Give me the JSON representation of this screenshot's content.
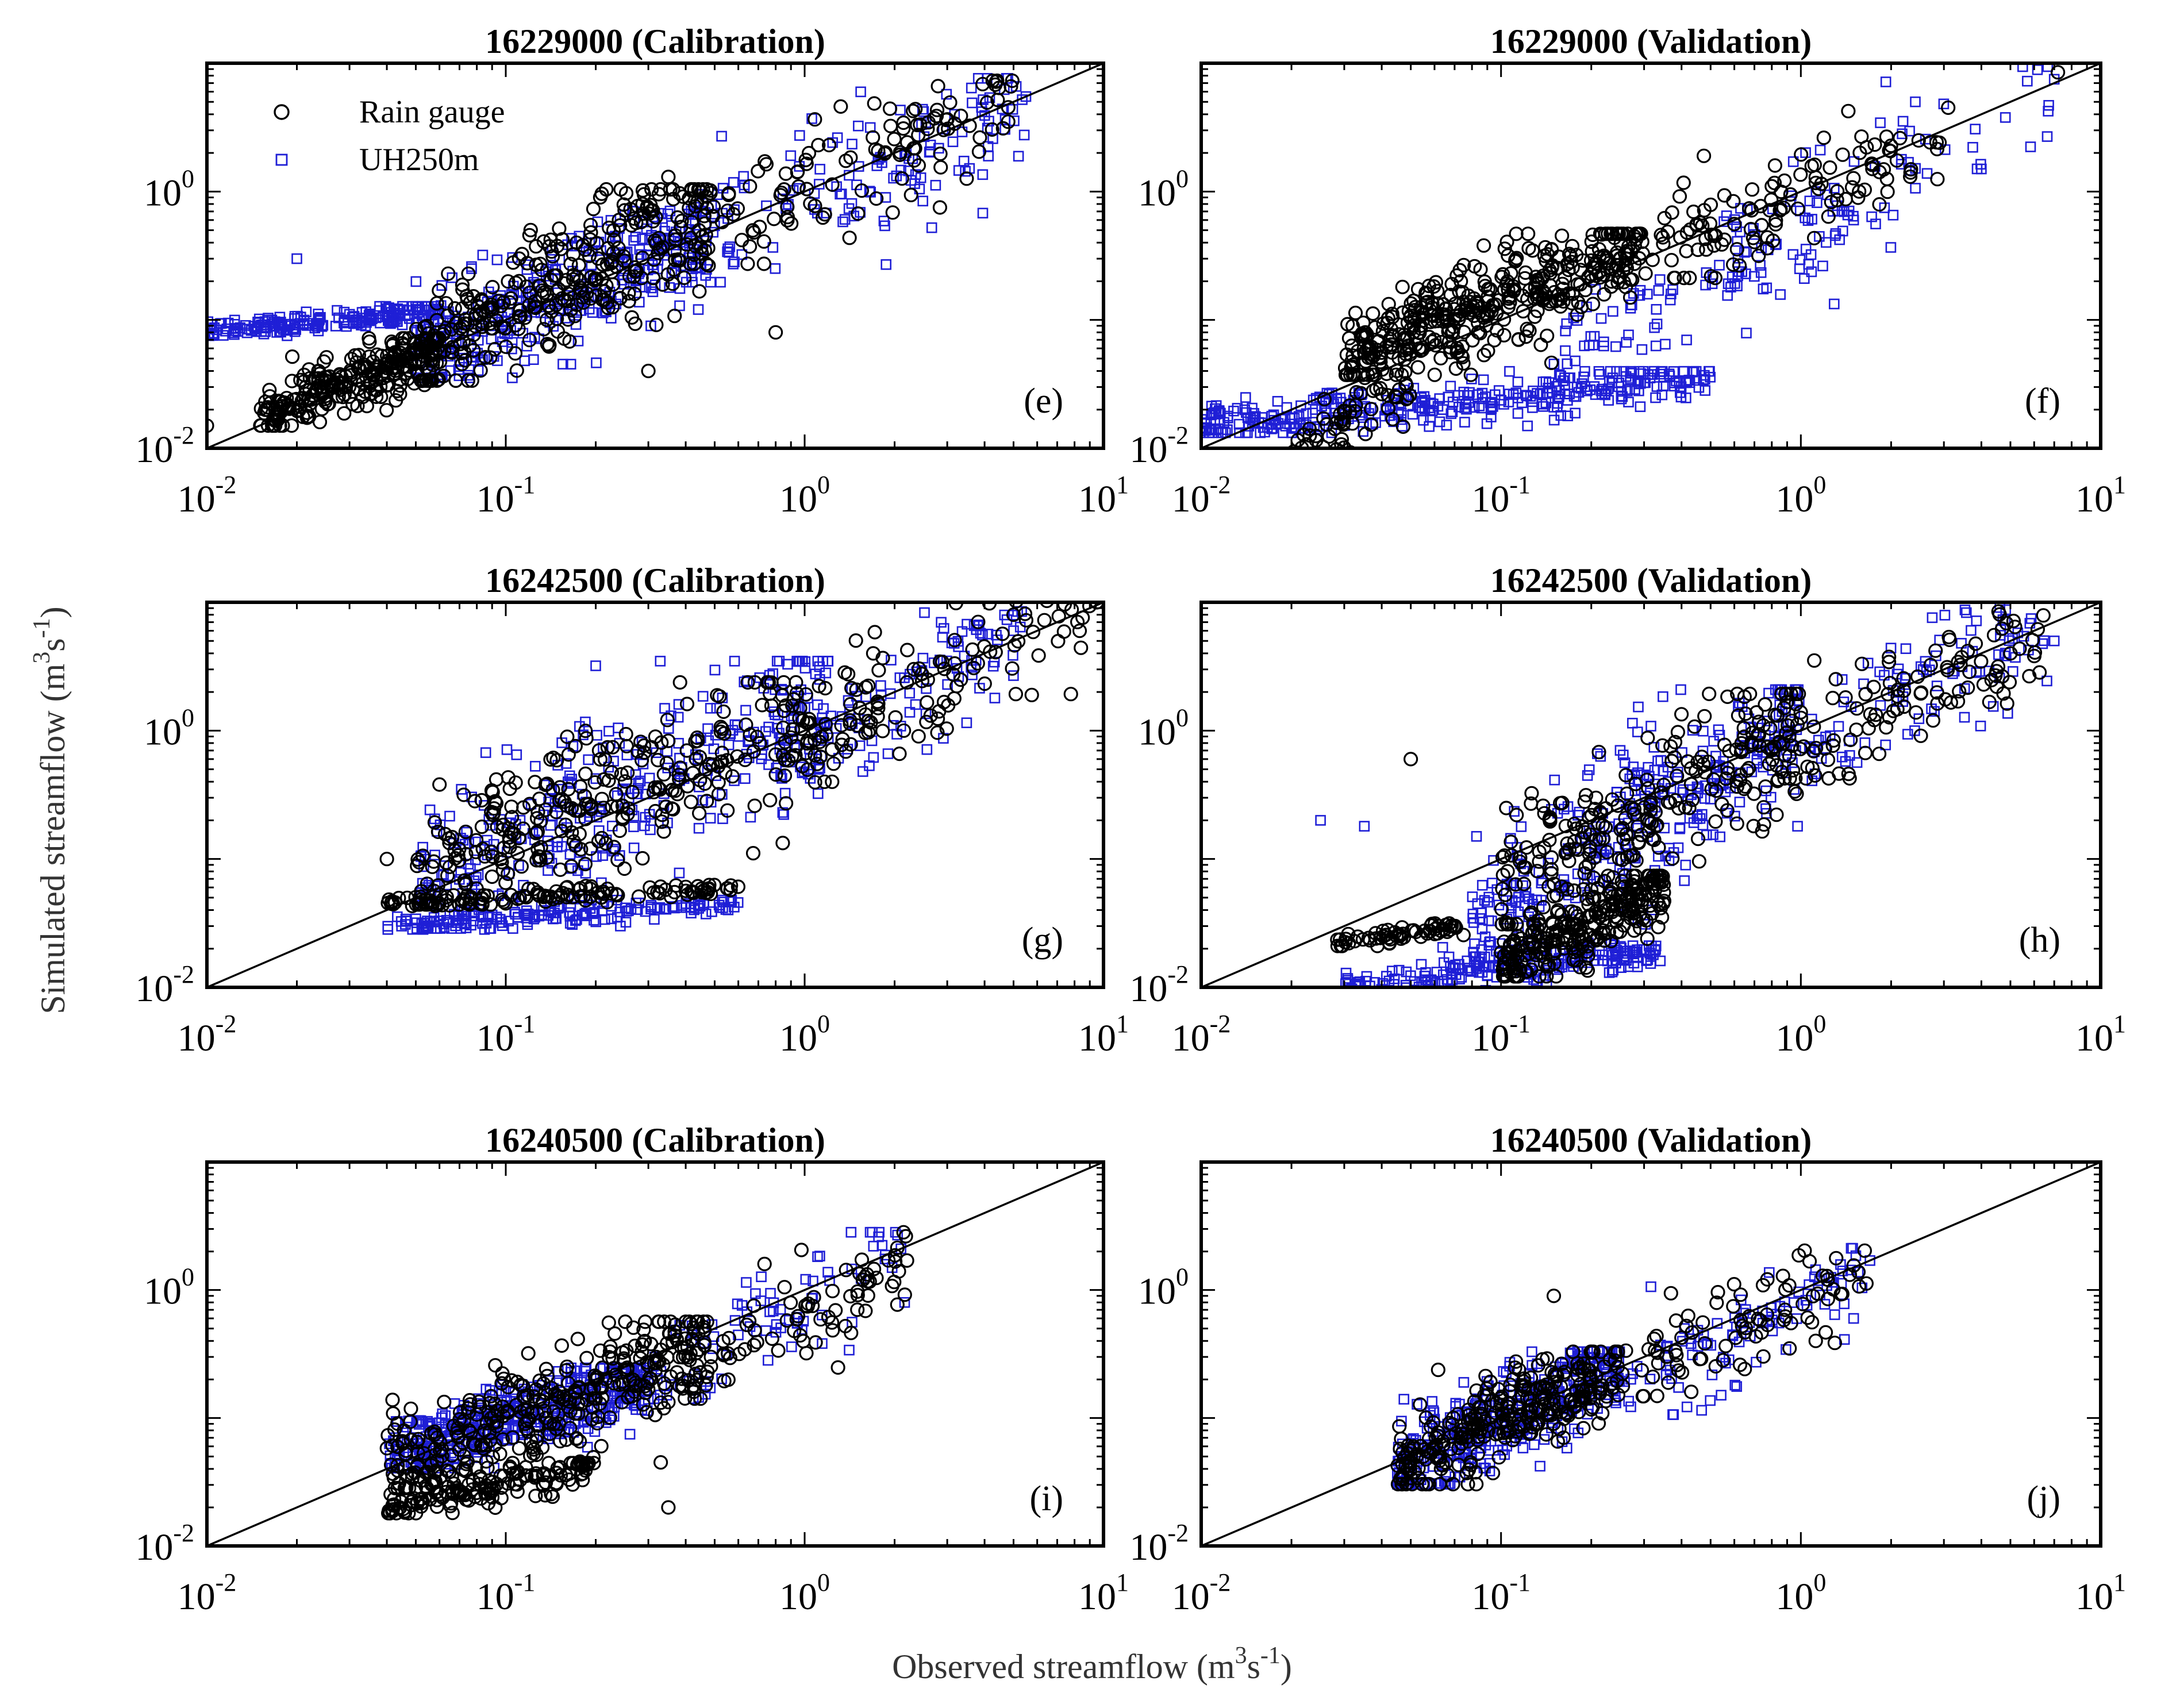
{
  "figure": {
    "xlabel": "Observed streamflow (m",
    "xlabel_sup1": "3",
    "xlabel_mid": "s",
    "xlabel_sup2": "-1",
    "xlabel_end": ")",
    "ylabel": "Simulated streamflow (m",
    "ylabel_sup1": "3",
    "ylabel_mid": "s",
    "ylabel_sup2": "-1",
    "ylabel_end": ")",
    "legend": [
      {
        "label": "Rain gauge",
        "marker": "circle",
        "color": "#000000"
      },
      {
        "label": "UH250m",
        "marker": "square",
        "color": "#1f1fd6"
      }
    ]
  },
  "chart_data": [
    {
      "type": "scatter",
      "panel": "(e)",
      "title": "16229000 (Calibration)",
      "xscale": "log",
      "yscale": "log",
      "xlim": [
        0.01,
        10
      ],
      "ylim": [
        0.01,
        10
      ],
      "xticks": [
        {
          "base": "10",
          "exp": "-2"
        },
        {
          "base": "10",
          "exp": "-1"
        },
        {
          "base": "10",
          "exp": "0"
        },
        {
          "base": "10",
          "exp": "1"
        }
      ],
      "yticks": [
        {
          "base": "10",
          "exp": "-2"
        },
        {
          "base": "10",
          "exp": "0"
        }
      ],
      "reference_line": "1:1",
      "series": [
        {
          "name": "Rain gauge",
          "clusters": [
            {
              "x": [
                0.015,
                0.06
              ],
              "y": [
                0.018,
                0.06
              ],
              "n": 260
            },
            {
              "x": [
                0.05,
                0.5
              ],
              "y": [
                0.05,
                0.7
              ],
              "n": 320
            },
            {
              "x": [
                0.4,
                5
              ],
              "y": [
                0.4,
                5
              ],
              "n": 120
            }
          ],
          "sample_points": [
            [
              0.01,
              0.015
            ],
            [
              0.35,
              1.3
            ],
            [
              0.8,
              0.08
            ],
            [
              0.3,
              0.04
            ],
            [
              4.8,
              3.5
            ]
          ]
        },
        {
          "name": "UH250m",
          "clusters": [
            {
              "x": [
                0.01,
                0.06
              ],
              "y": [
                0.08,
                0.12
              ],
              "n": 200
            },
            {
              "x": [
                0.05,
                0.5
              ],
              "y": [
                0.05,
                0.5
              ],
              "n": 320
            },
            {
              "x": [
                0.4,
                5.5
              ],
              "y": [
                0.3,
                5
              ],
              "n": 140
            }
          ],
          "sample_points": [
            [
              0.02,
              0.3
            ],
            [
              0.25,
              0.25
            ],
            [
              5.5,
              5.5
            ],
            [
              2.5,
              4.2
            ]
          ]
        }
      ]
    },
    {
      "type": "scatter",
      "panel": "(f)",
      "title": "16229000 (Validation)",
      "xscale": "log",
      "yscale": "log",
      "xlim": [
        0.01,
        10
      ],
      "ylim": [
        0.01,
        10
      ],
      "xticks": [
        {
          "base": "10",
          "exp": "-2"
        },
        {
          "base": "10",
          "exp": "-1"
        },
        {
          "base": "10",
          "exp": "0"
        },
        {
          "base": "10",
          "exp": "1"
        }
      ],
      "yticks": [
        {
          "base": "10",
          "exp": "-2"
        },
        {
          "base": "10",
          "exp": "0"
        }
      ],
      "reference_line": "1:1",
      "series": [
        {
          "name": "Rain gauge",
          "clusters": [
            {
              "x": [
                0.03,
                0.3
              ],
              "y": [
                0.05,
                0.35
              ],
              "n": 420
            },
            {
              "x": [
                0.02,
                0.05
              ],
              "y": [
                0.01,
                0.03
              ],
              "n": 60
            },
            {
              "x": [
                0.3,
                3
              ],
              "y": [
                0.3,
                3
              ],
              "n": 120
            }
          ],
          "sample_points": [
            [
              7.2,
              8.5
            ],
            [
              3.1,
              4.5
            ],
            [
              0.8,
              1.1
            ]
          ]
        },
        {
          "name": "UH250m",
          "clusters": [
            {
              "x": [
                0.01,
                0.5
              ],
              "y": [
                0.015,
                0.035
              ],
              "n": 360
            },
            {
              "x": [
                0.15,
                1.5
              ],
              "y": [
                0.05,
                0.5
              ],
              "n": 90
            },
            {
              "x": [
                0.5,
                7
              ],
              "y": [
                0.3,
                6
              ],
              "n": 70
            }
          ],
          "sample_points": [
            [
              7,
              7.5
            ],
            [
              4,
              1.5
            ],
            [
              1.5,
              0.6
            ]
          ]
        }
      ]
    },
    {
      "type": "scatter",
      "panel": "(g)",
      "title": "16242500 (Calibration)",
      "xscale": "log",
      "yscale": "log",
      "xlim": [
        0.01,
        10
      ],
      "ylim": [
        0.01,
        10
      ],
      "xticks": [
        {
          "base": "10",
          "exp": "-2"
        },
        {
          "base": "10",
          "exp": "-1"
        },
        {
          "base": "10",
          "exp": "0"
        },
        {
          "base": "10",
          "exp": "1"
        }
      ],
      "yticks": [
        {
          "base": "10",
          "exp": "-2"
        },
        {
          "base": "10",
          "exp": "0"
        }
      ],
      "reference_line": "1:1",
      "series": [
        {
          "name": "Rain gauge",
          "clusters": [
            {
              "x": [
                0.04,
                0.6
              ],
              "y": [
                0.045,
                0.06
              ],
              "n": 120
            },
            {
              "x": [
                0.05,
                1.2
              ],
              "y": [
                0.07,
                1.5
              ],
              "n": 300
            },
            {
              "x": [
                0.8,
                9
              ],
              "y": [
                0.6,
                9
              ],
              "n": 120
            }
          ],
          "sample_points": [
            [
              9.5,
              10
            ],
            [
              5,
              8
            ],
            [
              0.04,
              0.1
            ]
          ]
        },
        {
          "name": "UH250m",
          "clusters": [
            {
              "x": [
                0.04,
                0.6
              ],
              "y": [
                0.03,
                0.045
              ],
              "n": 160
            },
            {
              "x": [
                0.05,
                1.2
              ],
              "y": [
                0.05,
                2
              ],
              "n": 320
            },
            {
              "x": [
                0.8,
                5.5
              ],
              "y": [
                0.6,
                6
              ],
              "n": 110
            }
          ],
          "sample_points": [
            [
              5,
              6
            ],
            [
              0.2,
              3.2
            ]
          ]
        }
      ]
    },
    {
      "type": "scatter",
      "panel": "(h)",
      "title": "16242500 (Validation)",
      "xscale": "log",
      "yscale": "log",
      "xlim": [
        0.01,
        10
      ],
      "ylim": [
        0.01,
        10
      ],
      "xticks": [
        {
          "base": "10",
          "exp": "-2"
        },
        {
          "base": "10",
          "exp": "-1"
        },
        {
          "base": "10",
          "exp": "0"
        },
        {
          "base": "10",
          "exp": "1"
        }
      ],
      "yticks": [
        {
          "base": "10",
          "exp": "-2"
        },
        {
          "base": "10",
          "exp": "0"
        }
      ],
      "reference_line": "1:1",
      "series": [
        {
          "name": "Rain gauge",
          "clusters": [
            {
              "x": [
                0.028,
                0.08
              ],
              "y": [
                0.022,
                0.03
              ],
              "n": 60
            },
            {
              "x": [
                0.1,
                0.35
              ],
              "y": [
                0.015,
                0.06
              ],
              "n": 260
            },
            {
              "x": [
                0.1,
                1
              ],
              "y": [
                0.05,
                1.2
              ],
              "n": 260
            },
            {
              "x": [
                0.8,
                7
              ],
              "y": [
                0.6,
                6
              ],
              "n": 110
            }
          ],
          "sample_points": [
            [
              0.05,
              0.6
            ],
            [
              5,
              4
            ],
            [
              4.5,
              2.2
            ]
          ]
        },
        {
          "name": "UH250m",
          "clusters": [
            {
              "x": [
                0.03,
                0.35
              ],
              "y": [
                0.01,
                0.02
              ],
              "n": 220
            },
            {
              "x": [
                0.08,
                1
              ],
              "y": [
                0.03,
                1.2
              ],
              "n": 320
            },
            {
              "x": [
                0.8,
                7
              ],
              "y": [
                0.6,
                8
              ],
              "n": 110
            }
          ],
          "sample_points": [
            [
              0.025,
              0.2
            ],
            [
              0.035,
              0.18
            ],
            [
              7,
              5
            ]
          ]
        }
      ]
    },
    {
      "type": "scatter",
      "panel": "(i)",
      "title": "16240500 (Calibration)",
      "xscale": "log",
      "yscale": "log",
      "xlim": [
        0.01,
        10
      ],
      "ylim": [
        0.01,
        10
      ],
      "xticks": [
        {
          "base": "10",
          "exp": "-2"
        },
        {
          "base": "10",
          "exp": "-1"
        },
        {
          "base": "10",
          "exp": "0"
        },
        {
          "base": "10",
          "exp": "1"
        }
      ],
      "yticks": [
        {
          "base": "10",
          "exp": "-2"
        },
        {
          "base": "10",
          "exp": "0"
        }
      ],
      "reference_line": "1:1",
      "series": [
        {
          "name": "Rain gauge",
          "clusters": [
            {
              "x": [
                0.04,
                0.2
              ],
              "y": [
                0.02,
                0.04
              ],
              "n": 140
            },
            {
              "x": [
                0.04,
                0.5
              ],
              "y": [
                0.04,
                0.4
              ],
              "n": 360
            },
            {
              "x": [
                0.4,
                2.2
              ],
              "y": [
                0.2,
                2
              ],
              "n": 80
            }
          ],
          "sample_points": [
            [
              0.35,
              0.02
            ],
            [
              0.33,
              0.045
            ],
            [
              2.2,
              1.7
            ]
          ]
        },
        {
          "name": "UH250m",
          "clusters": [
            {
              "x": [
                0.04,
                0.3
              ],
              "y": [
                0.05,
                0.2
              ],
              "n": 420
            },
            {
              "x": [
                0.3,
                2.2
              ],
              "y": [
                0.2,
                2
              ],
              "n": 80
            }
          ],
          "sample_points": [
            [
              2.1,
              2.1
            ],
            [
              1.7,
              2.2
            ]
          ]
        }
      ]
    },
    {
      "type": "scatter",
      "panel": "(j)",
      "title": "16240500 (Validation)",
      "xscale": "log",
      "yscale": "log",
      "xlim": [
        0.01,
        10
      ],
      "ylim": [
        0.01,
        10
      ],
      "xticks": [
        {
          "base": "10",
          "exp": "-2"
        },
        {
          "base": "10",
          "exp": "-1"
        },
        {
          "base": "10",
          "exp": "0"
        },
        {
          "base": "10",
          "exp": "1"
        }
      ],
      "yticks": [
        {
          "base": "10",
          "exp": "-2"
        },
        {
          "base": "10",
          "exp": "0"
        }
      ],
      "reference_line": "1:1",
      "series": [
        {
          "name": "Rain gauge",
          "clusters": [
            {
              "x": [
                0.045,
                0.25
              ],
              "y": [
                0.04,
                0.25
              ],
              "n": 300
            },
            {
              "x": [
                0.25,
                1.7
              ],
              "y": [
                0.2,
                1.5
              ],
              "n": 90
            }
          ],
          "sample_points": [
            [
              0.15,
              0.9
            ],
            [
              0.2,
              0.2
            ]
          ]
        },
        {
          "name": "UH250m",
          "clusters": [
            {
              "x": [
                0.045,
                0.25
              ],
              "y": [
                0.04,
                0.25
              ],
              "n": 340
            },
            {
              "x": [
                0.25,
                1.7
              ],
              "y": [
                0.15,
                1.5
              ],
              "n": 90
            }
          ],
          "sample_points": [
            [
              1.7,
              1.7
            ],
            [
              1.5,
              0.6
            ]
          ]
        }
      ]
    }
  ]
}
